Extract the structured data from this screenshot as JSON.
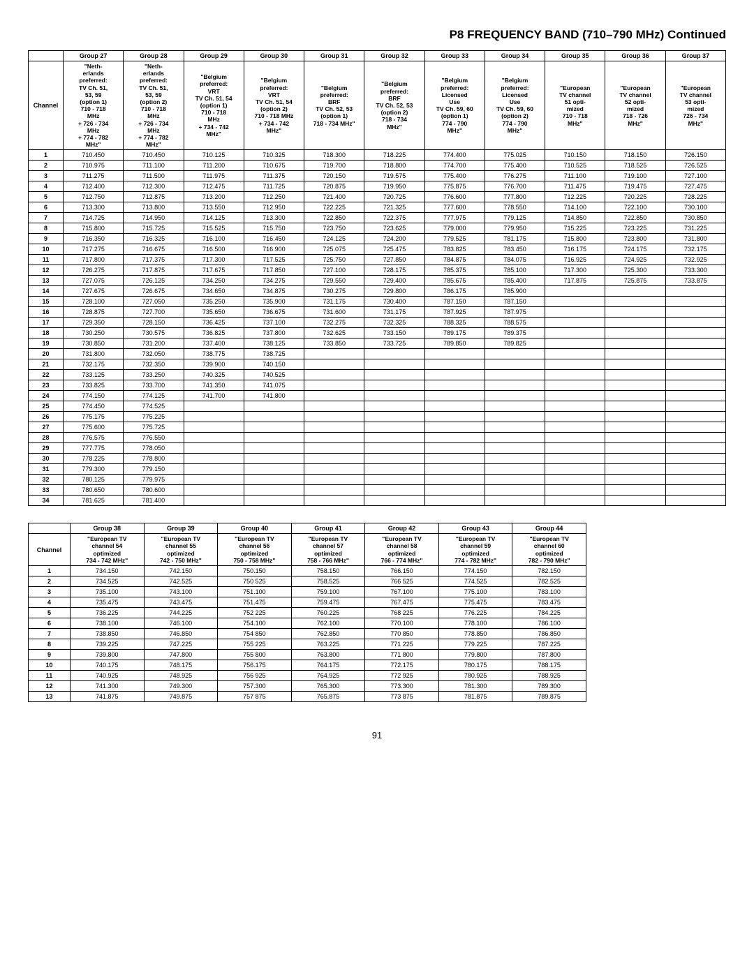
{
  "title": "P8 FREQUENCY BAND (710–790 MHz) Continued",
  "pageNumber": "91",
  "table1": {
    "channelLabel": "Channel",
    "columns": [
      {
        "group": "Group 27",
        "desc": "\"Neth-\nerlands\npreferred:\nTV Ch. 51,\n53, 59\n(option 1)\n710 - 718\nMHz\n+ 726 - 734\nMHz\n+ 774 - 782\nMHz\""
      },
      {
        "group": "Group 28",
        "desc": "\"Neth-\nerlands\npreferred:\nTV Ch. 51,\n53, 59\n(option 2)\n710 - 718\nMHz\n+ 726 - 734\nMHz\n+ 774 - 782\nMHz\""
      },
      {
        "group": "Group 29",
        "desc": "\"Belgium\npreferred:\nVRT\nTV Ch. 51, 54\n(option 1)\n710 - 718\nMHz\n+ 734 - 742\nMHz\""
      },
      {
        "group": "Group 30",
        "desc": "\"Belgium\npreferred:\nVRT\nTV Ch. 51, 54\n(option 2)\n710 - 718 MHz\n+ 734 - 742\nMHz\""
      },
      {
        "group": "Group 31",
        "desc": "\"Belgium\npreferred:\nBRF\nTV Ch. 52, 53\n(option 1)\n718 - 734 MHz\""
      },
      {
        "group": "Group 32",
        "desc": "\"Belgium\npreferred:\nBRF\nTV Ch. 52, 53\n(option 2)\n718 - 734\nMHz\""
      },
      {
        "group": "Group 33",
        "desc": "\"Belgium\npreferred:\nLicensed\nUse\nTV Ch. 59, 60\n(option 1)\n774 - 790\nMHz\""
      },
      {
        "group": "Group 34",
        "desc": "\"Belgium\npreferred:\nLicensed\nUse\nTV Ch. 59, 60\n(option 2)\n774 - 790\nMHz\""
      },
      {
        "group": "Group 35",
        "desc": "\"European\nTV channel\n51 opti-\nmized\n710 - 718\nMHz\""
      },
      {
        "group": "Group 36",
        "desc": "\"European\nTV channel\n52 opti-\nmized\n718 - 726\nMHz\""
      },
      {
        "group": "Group 37",
        "desc": "\"European\nTV channel\n53 opti-\nmized\n726 - 734\nMHz\""
      }
    ],
    "rows": [
      [
        "1",
        "710.450",
        "710.450",
        "710.125",
        "710.325",
        "718.300",
        "718.225",
        "774.400",
        "775.025",
        "710.150",
        "718.150",
        "726.150"
      ],
      [
        "2",
        "710.975",
        "711.100",
        "711.200",
        "710.675",
        "719.700",
        "718.800",
        "774.700",
        "775.400",
        "710.525",
        "718.525",
        "726.525"
      ],
      [
        "3",
        "711.275",
        "711.500",
        "711.975",
        "711.375",
        "720.150",
        "719.575",
        "775.400",
        "776.275",
        "711.100",
        "719.100",
        "727.100"
      ],
      [
        "4",
        "712.400",
        "712.300",
        "712.475",
        "711.725",
        "720.875",
        "719.950",
        "775.875",
        "776.700",
        "711.475",
        "719.475",
        "727.475"
      ],
      [
        "5",
        "712.750",
        "712.875",
        "713.200",
        "712.250",
        "721.400",
        "720.725",
        "776.600",
        "777.800",
        "712.225",
        "720.225",
        "728.225"
      ],
      [
        "6",
        "713.300",
        "713.800",
        "713.550",
        "712.950",
        "722.225",
        "721.325",
        "777.600",
        "778.550",
        "714.100",
        "722.100",
        "730.100"
      ],
      [
        "7",
        "714.725",
        "714.950",
        "714.125",
        "713.300",
        "722.850",
        "722.375",
        "777.975",
        "779.125",
        "714.850",
        "722.850",
        "730.850"
      ],
      [
        "8",
        "715.800",
        "715.725",
        "715.525",
        "715.750",
        "723.750",
        "723.625",
        "779.000",
        "779.950",
        "715.225",
        "723.225",
        "731.225"
      ],
      [
        "9",
        "716.350",
        "716.325",
        "716.100",
        "716.450",
        "724.125",
        "724.200",
        "779.525",
        "781.175",
        "715.800",
        "723.800",
        "731.800"
      ],
      [
        "10",
        "717.275",
        "716.675",
        "716.500",
        "716.900",
        "725.075",
        "725.475",
        "783.825",
        "783.450",
        "716.175",
        "724.175",
        "732.175"
      ],
      [
        "11",
        "717.800",
        "717.375",
        "717.300",
        "717.525",
        "725.750",
        "727.850",
        "784.875",
        "784.075",
        "716.925",
        "724.925",
        "732.925"
      ],
      [
        "12",
        "726.275",
        "717.875",
        "717.675",
        "717.850",
        "727.100",
        "728.175",
        "785.375",
        "785.100",
        "717.300",
        "725.300",
        "733.300"
      ],
      [
        "13",
        "727.075",
        "726.125",
        "734.250",
        "734.275",
        "729.550",
        "729.400",
        "785.675",
        "785.400",
        "717.875",
        "725.875",
        "733.875"
      ],
      [
        "14",
        "727.675",
        "726.675",
        "734.650",
        "734.875",
        "730.275",
        "729.800",
        "786.175",
        "785.900",
        "",
        "",
        ""
      ],
      [
        "15",
        "728.100",
        "727.050",
        "735.250",
        "735.900",
        "731.175",
        "730.400",
        "787.150",
        "787.150",
        "",
        "",
        ""
      ],
      [
        "16",
        "728.875",
        "727.700",
        "735.650",
        "736.675",
        "731.600",
        "731.175",
        "787.925",
        "787.975",
        "",
        "",
        ""
      ],
      [
        "17",
        "729.350",
        "728.150",
        "736.425",
        "737.100",
        "732.275",
        "732.325",
        "788.325",
        "788.575",
        "",
        "",
        ""
      ],
      [
        "18",
        "730.250",
        "730.575",
        "736.825",
        "737.800",
        "732.625",
        "733.150",
        "789.175",
        "789.375",
        "",
        "",
        ""
      ],
      [
        "19",
        "730.850",
        "731.200",
        "737.400",
        "738.125",
        "733.850",
        "733.725",
        "789.850",
        "789.825",
        "",
        "",
        ""
      ],
      [
        "20",
        "731.800",
        "732.050",
        "738.775",
        "738.725",
        "",
        "",
        "",
        "",
        "",
        "",
        ""
      ],
      [
        "21",
        "732.175",
        "732.350",
        "739.900",
        "740.150",
        "",
        "",
        "",
        "",
        "",
        "",
        ""
      ],
      [
        "22",
        "733.125",
        "733.250",
        "740.325",
        "740.525",
        "",
        "",
        "",
        "",
        "",
        "",
        ""
      ],
      [
        "23",
        "733.825",
        "733.700",
        "741.350",
        "741.075",
        "",
        "",
        "",
        "",
        "",
        "",
        ""
      ],
      [
        "24",
        "774.150",
        "774.125",
        "741.700",
        "741.800",
        "",
        "",
        "",
        "",
        "",
        "",
        ""
      ],
      [
        "25",
        "774.450",
        "774.525",
        "",
        "",
        "",
        "",
        "",
        "",
        "",
        "",
        ""
      ],
      [
        "26",
        "775.175",
        "775.225",
        "",
        "",
        "",
        "",
        "",
        "",
        "",
        "",
        ""
      ],
      [
        "27",
        "775.600",
        "775.725",
        "",
        "",
        "",
        "",
        "",
        "",
        "",
        "",
        ""
      ],
      [
        "28",
        "776.575",
        "776.550",
        "",
        "",
        "",
        "",
        "",
        "",
        "",
        "",
        ""
      ],
      [
        "29",
        "777.775",
        "778.050",
        "",
        "",
        "",
        "",
        "",
        "",
        "",
        "",
        ""
      ],
      [
        "30",
        "778.225",
        "778.800",
        "",
        "",
        "",
        "",
        "",
        "",
        "",
        "",
        ""
      ],
      [
        "31",
        "779.300",
        "779.150",
        "",
        "",
        "",
        "",
        "",
        "",
        "",
        "",
        ""
      ],
      [
        "32",
        "780.125",
        "779.975",
        "",
        "",
        "",
        "",
        "",
        "",
        "",
        "",
        ""
      ],
      [
        "33",
        "780.650",
        "780.600",
        "",
        "",
        "",
        "",
        "",
        "",
        "",
        "",
        ""
      ],
      [
        "34",
        "781.625",
        "781.400",
        "",
        "",
        "",
        "",
        "",
        "",
        "",
        "",
        ""
      ]
    ]
  },
  "table2": {
    "channelLabel": "Channel",
    "columns": [
      {
        "group": "Group 38",
        "desc": "\"European TV\nchannel 54\noptimized\n734 - 742 MHz\""
      },
      {
        "group": "Group 39",
        "desc": "\"European TV\nchannel 55\noptimized\n742 - 750 MHz\""
      },
      {
        "group": "Group 40",
        "desc": "\"European TV\nchannel 56\noptimized\n750 - 758 MHz\""
      },
      {
        "group": "Group 41",
        "desc": "\"European TV\nchannel 57\noptimized\n758 - 766 MHz\""
      },
      {
        "group": "Group 42",
        "desc": "\"European TV\nchannel 58\noptimized\n766 - 774 MHz\""
      },
      {
        "group": "Group 43",
        "desc": "\"European TV\nchannel 59\noptimized\n774 - 782 MHz\""
      },
      {
        "group": "Group 44",
        "desc": "\"European TV\nchannel 60\noptimized\n782 - 790 MHz\""
      }
    ],
    "rows": [
      [
        "1",
        "734.150",
        "742.150",
        "750.150",
        "758.150",
        "766.150",
        "774.150",
        "782.150"
      ],
      [
        "2",
        "734.525",
        "742.525",
        "750 525",
        "758.525",
        "766 525",
        "774.525",
        "782.525"
      ],
      [
        "3",
        "735.100",
        "743.100",
        "751.100",
        "759.100",
        "767.100",
        "775.100",
        "783.100"
      ],
      [
        "4",
        "735.475",
        "743.475",
        "751.475",
        "759.475",
        "767.475",
        "775.475",
        "783.475"
      ],
      [
        "5",
        "736.225",
        "744.225",
        "752 225",
        "760.225",
        "768 225",
        "776.225",
        "784.225"
      ],
      [
        "6",
        "738.100",
        "746.100",
        "754.100",
        "762.100",
        "770.100",
        "778.100",
        "786.100"
      ],
      [
        "7",
        "738.850",
        "746.850",
        "754 850",
        "762.850",
        "770 850",
        "778.850",
        "786.850"
      ],
      [
        "8",
        "739.225",
        "747.225",
        "755 225",
        "763.225",
        "771 225",
        "779.225",
        "787.225"
      ],
      [
        "9",
        "739.800",
        "747.800",
        "755 800",
        "763.800",
        "771 800",
        "779.800",
        "787.800"
      ],
      [
        "10",
        "740.175",
        "748.175",
        "756.175",
        "764.175",
        "772.175",
        "780.175",
        "788.175"
      ],
      [
        "11",
        "740.925",
        "748.925",
        "756 925",
        "764.925",
        "772 925",
        "780.925",
        "788.925"
      ],
      [
        "12",
        "741.300",
        "749.300",
        "757.300",
        "765.300",
        "773.300",
        "781.300",
        "789.300"
      ],
      [
        "13",
        "741.875",
        "749.875",
        "757 875",
        "765.875",
        "773 875",
        "781.875",
        "789.875"
      ]
    ]
  }
}
